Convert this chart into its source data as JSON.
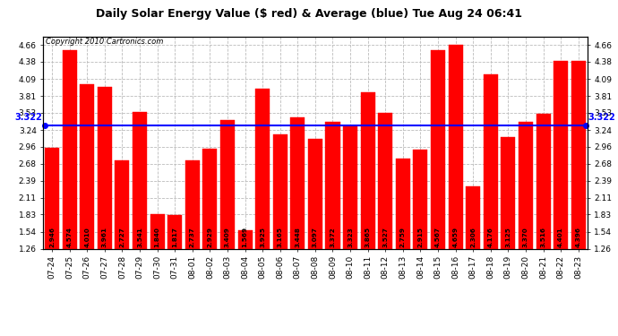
{
  "title": "Daily Solar Energy Value ($ red) & Average (blue) Tue Aug 24 06:41",
  "copyright": "Copyright 2010 Cartronics.com",
  "average": 3.322,
  "bar_color": "#FF0000",
  "average_color": "#0000FF",
  "background_color": "#FFFFFF",
  "plot_bg_color": "#FFFFFF",
  "grid_color": "#BBBBBB",
  "ylim": [
    1.26,
    4.795
  ],
  "yticks": [
    1.26,
    1.54,
    1.83,
    2.11,
    2.39,
    2.68,
    2.96,
    3.24,
    3.53,
    3.81,
    4.09,
    4.38,
    4.66
  ],
  "categories": [
    "07-24",
    "07-25",
    "07-26",
    "07-27",
    "07-28",
    "07-29",
    "07-30",
    "07-31",
    "08-01",
    "08-02",
    "08-03",
    "08-04",
    "08-05",
    "08-06",
    "08-07",
    "08-08",
    "08-09",
    "08-10",
    "08-11",
    "08-12",
    "08-13",
    "08-14",
    "08-15",
    "08-16",
    "08-17",
    "08-18",
    "08-19",
    "08-20",
    "08-21",
    "08-22",
    "08-23"
  ],
  "values": [
    2.946,
    4.574,
    4.01,
    3.961,
    2.727,
    3.541,
    1.84,
    1.817,
    2.737,
    2.929,
    3.409,
    1.569,
    3.925,
    3.165,
    3.448,
    3.097,
    3.372,
    3.323,
    3.865,
    3.527,
    2.759,
    2.915,
    4.567,
    4.659,
    2.306,
    4.176,
    3.125,
    3.37,
    3.516,
    4.401,
    4.396
  ],
  "title_fontsize": 9,
  "copyright_fontsize": 6,
  "tick_fontsize": 6.5,
  "value_fontsize": 5.2,
  "avg_label_fontsize": 7
}
